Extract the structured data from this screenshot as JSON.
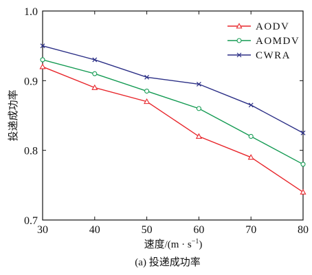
{
  "chart_data": {
    "type": "line",
    "title": "",
    "caption": "(a) 投递成功率",
    "xlabel": "速度/(m · s",
    "xlabel_sup": "−1",
    "xlabel_close": ")",
    "ylabel": "投递成功率",
    "x": [
      30,
      40,
      50,
      60,
      70,
      80
    ],
    "xlim": [
      30,
      80
    ],
    "ylim": [
      0.7,
      1.0
    ],
    "xticks": [
      "30",
      "40",
      "50",
      "60",
      "70",
      "80"
    ],
    "yticks": [
      "0.7",
      "0.8",
      "0.9",
      "1.0"
    ],
    "grid": false,
    "legend_position": "top-right",
    "series": [
      {
        "name": "AODV",
        "values": [
          0.92,
          0.89,
          0.87,
          0.82,
          0.79,
          0.74
        ],
        "color": "#e8262b",
        "marker": "triangle"
      },
      {
        "name": "AOMDV",
        "values": [
          0.93,
          0.91,
          0.885,
          0.86,
          0.82,
          0.78
        ],
        "color": "#139a52",
        "marker": "circle"
      },
      {
        "name": "CWRA",
        "values": [
          0.95,
          0.93,
          0.905,
          0.895,
          0.865,
          0.825
        ],
        "color": "#2b2f86",
        "marker": "x"
      }
    ]
  }
}
